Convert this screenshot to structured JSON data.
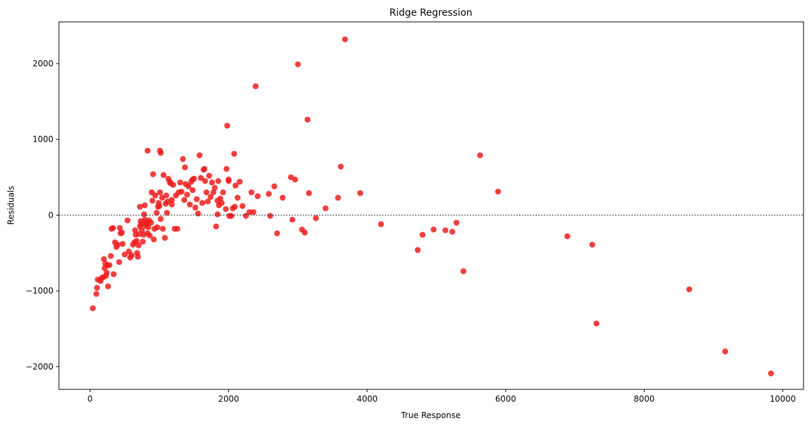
{
  "chart_data": {
    "type": "scatter",
    "title": "Ridge Regression",
    "xlabel": "True Response",
    "ylabel": "Residuals",
    "xlim": [
      -450,
      10300
    ],
    "ylim": [
      -2300,
      2550
    ],
    "xticks": [
      0,
      2000,
      4000,
      6000,
      8000,
      10000
    ],
    "yticks": [
      -2000,
      -1000,
      0,
      1000,
      2000
    ],
    "xtick_labels": [
      "0",
      "2000",
      "4000",
      "6000",
      "8000",
      "10000"
    ],
    "ytick_labels": [
      "−2000",
      "−1000",
      "0",
      "1000",
      "2000"
    ],
    "reference_line": {
      "y": 0,
      "style": "dotted",
      "color": "#333333"
    },
    "grid": false,
    "marker_color": "#ee1c1c",
    "points": [
      [
        40,
        -1230
      ],
      [
        90,
        -1040
      ],
      [
        100,
        -960
      ],
      [
        110,
        -850
      ],
      [
        150,
        -870
      ],
      [
        170,
        -830
      ],
      [
        190,
        -820
      ],
      [
        200,
        -580
      ],
      [
        210,
        -700
      ],
      [
        220,
        -640
      ],
      [
        230,
        -800
      ],
      [
        240,
        -760
      ],
      [
        250,
        -660
      ],
      [
        260,
        -940
      ],
      [
        280,
        -660
      ],
      [
        300,
        -540
      ],
      [
        310,
        -180
      ],
      [
        330,
        -170
      ],
      [
        340,
        -780
      ],
      [
        360,
        -360
      ],
      [
        380,
        -420
      ],
      [
        400,
        -390
      ],
      [
        420,
        -620
      ],
      [
        430,
        -170
      ],
      [
        440,
        -240
      ],
      [
        460,
        -230
      ],
      [
        470,
        -380
      ],
      [
        500,
        -520
      ],
      [
        540,
        -70
      ],
      [
        560,
        -480
      ],
      [
        580,
        -560
      ],
      [
        600,
        -530
      ],
      [
        620,
        -390
      ],
      [
        640,
        -360
      ],
      [
        650,
        -200
      ],
      [
        660,
        -260
      ],
      [
        670,
        -340
      ],
      [
        680,
        -500
      ],
      [
        690,
        -550
      ],
      [
        700,
        -400
      ],
      [
        710,
        -250
      ],
      [
        720,
        -150
      ],
      [
        730,
        -80
      ],
      [
        740,
        -120
      ],
      [
        750,
        -200
      ],
      [
        760,
        -350
      ],
      [
        770,
        -260
      ],
      [
        780,
        10
      ],
      [
        790,
        -60
      ],
      [
        800,
        -140
      ],
      [
        810,
        -90
      ],
      [
        820,
        -110
      ],
      [
        830,
        -240
      ],
      [
        840,
        -160
      ],
      [
        850,
        -70
      ],
      [
        860,
        -270
      ],
      [
        880,
        -100
      ],
      [
        890,
        300
      ],
      [
        900,
        190
      ],
      [
        910,
        540
      ],
      [
        920,
        -320
      ],
      [
        930,
        -180
      ],
      [
        940,
        260
      ],
      [
        960,
        30
      ],
      [
        970,
        -160
      ],
      [
        980,
        110
      ],
      [
        990,
        160
      ],
      [
        1000,
        120
      ],
      [
        1010,
        300
      ],
      [
        1020,
        -50
      ],
      [
        1040,
        230
      ],
      [
        1050,
        -180
      ],
      [
        1060,
        530
      ],
      [
        1080,
        -300
      ],
      [
        1090,
        150
      ],
      [
        1100,
        260
      ],
      [
        1110,
        30
      ],
      [
        1120,
        180
      ],
      [
        1130,
        480
      ],
      [
        1150,
        440
      ],
      [
        1160,
        420
      ],
      [
        1180,
        140
      ],
      [
        1200,
        400
      ],
      [
        1220,
        -180
      ],
      [
        1240,
        260
      ],
      [
        1260,
        -180
      ],
      [
        1280,
        300
      ],
      [
        1300,
        430
      ],
      [
        1320,
        310
      ],
      [
        1340,
        740
      ],
      [
        1360,
        200
      ],
      [
        1380,
        410
      ],
      [
        1400,
        270
      ],
      [
        1420,
        380
      ],
      [
        1440,
        140
      ],
      [
        1460,
        440
      ],
      [
        1480,
        330
      ],
      [
        1500,
        480
      ],
      [
        1520,
        100
      ],
      [
        1540,
        210
      ],
      [
        1560,
        20
      ],
      [
        1580,
        790
      ],
      [
        1600,
        490
      ],
      [
        1620,
        160
      ],
      [
        1640,
        600
      ],
      [
        1660,
        450
      ],
      [
        1680,
        300
      ],
      [
        1700,
        180
      ],
      [
        1720,
        520
      ],
      [
        1740,
        240
      ],
      [
        1760,
        430
      ],
      [
        1780,
        300
      ],
      [
        1800,
        360
      ],
      [
        1820,
        -150
      ],
      [
        1840,
        10
      ],
      [
        1860,
        130
      ],
      [
        1880,
        220
      ],
      [
        1900,
        160
      ],
      [
        1920,
        300
      ],
      [
        1960,
        80
      ],
      [
        1980,
        1180
      ],
      [
        2000,
        450
      ],
      [
        2010,
        -10
      ],
      [
        2040,
        -10
      ],
      [
        2060,
        90
      ],
      [
        2080,
        810
      ],
      [
        2100,
        390
      ],
      [
        2130,
        230
      ],
      [
        2160,
        440
      ],
      [
        2200,
        120
      ],
      [
        2250,
        -10
      ],
      [
        2300,
        40
      ],
      [
        2330,
        300
      ],
      [
        2360,
        40
      ],
      [
        2390,
        1700
      ],
      [
        2420,
        250
      ],
      [
        2580,
        280
      ],
      [
        2600,
        -10
      ],
      [
        2660,
        380
      ],
      [
        2700,
        -240
      ],
      [
        2780,
        230
      ],
      [
        2900,
        500
      ],
      [
        2920,
        -60
      ],
      [
        2960,
        470
      ],
      [
        3000,
        1990
      ],
      [
        3060,
        -190
      ],
      [
        3100,
        -230
      ],
      [
        3140,
        1260
      ],
      [
        3160,
        290
      ],
      [
        3260,
        -40
      ],
      [
        3400,
        90
      ],
      [
        3580,
        230
      ],
      [
        3620,
        640
      ],
      [
        3680,
        2320
      ],
      [
        3900,
        290
      ],
      [
        4200,
        -120
      ],
      [
        4730,
        -460
      ],
      [
        4800,
        -260
      ],
      [
        4960,
        -190
      ],
      [
        5130,
        -200
      ],
      [
        5230,
        -220
      ],
      [
        5290,
        -100
      ],
      [
        5390,
        -740
      ],
      [
        5630,
        790
      ],
      [
        5890,
        310
      ],
      [
        6890,
        -280
      ],
      [
        7250,
        -390
      ],
      [
        7310,
        -1430
      ],
      [
        8650,
        -980
      ],
      [
        9170,
        -1800
      ],
      [
        9830,
        -2090
      ],
      [
        720,
        110
      ],
      [
        790,
        130
      ],
      [
        830,
        850
      ],
      [
        1010,
        850
      ],
      [
        1020,
        820
      ],
      [
        1180,
        200
      ],
      [
        1370,
        630
      ],
      [
        1480,
        470
      ],
      [
        1650,
        610
      ],
      [
        1970,
        610
      ],
      [
        2000,
        470
      ],
      [
        2090,
        110
      ],
      [
        1850,
        450
      ],
      [
        1840,
        190
      ]
    ]
  }
}
